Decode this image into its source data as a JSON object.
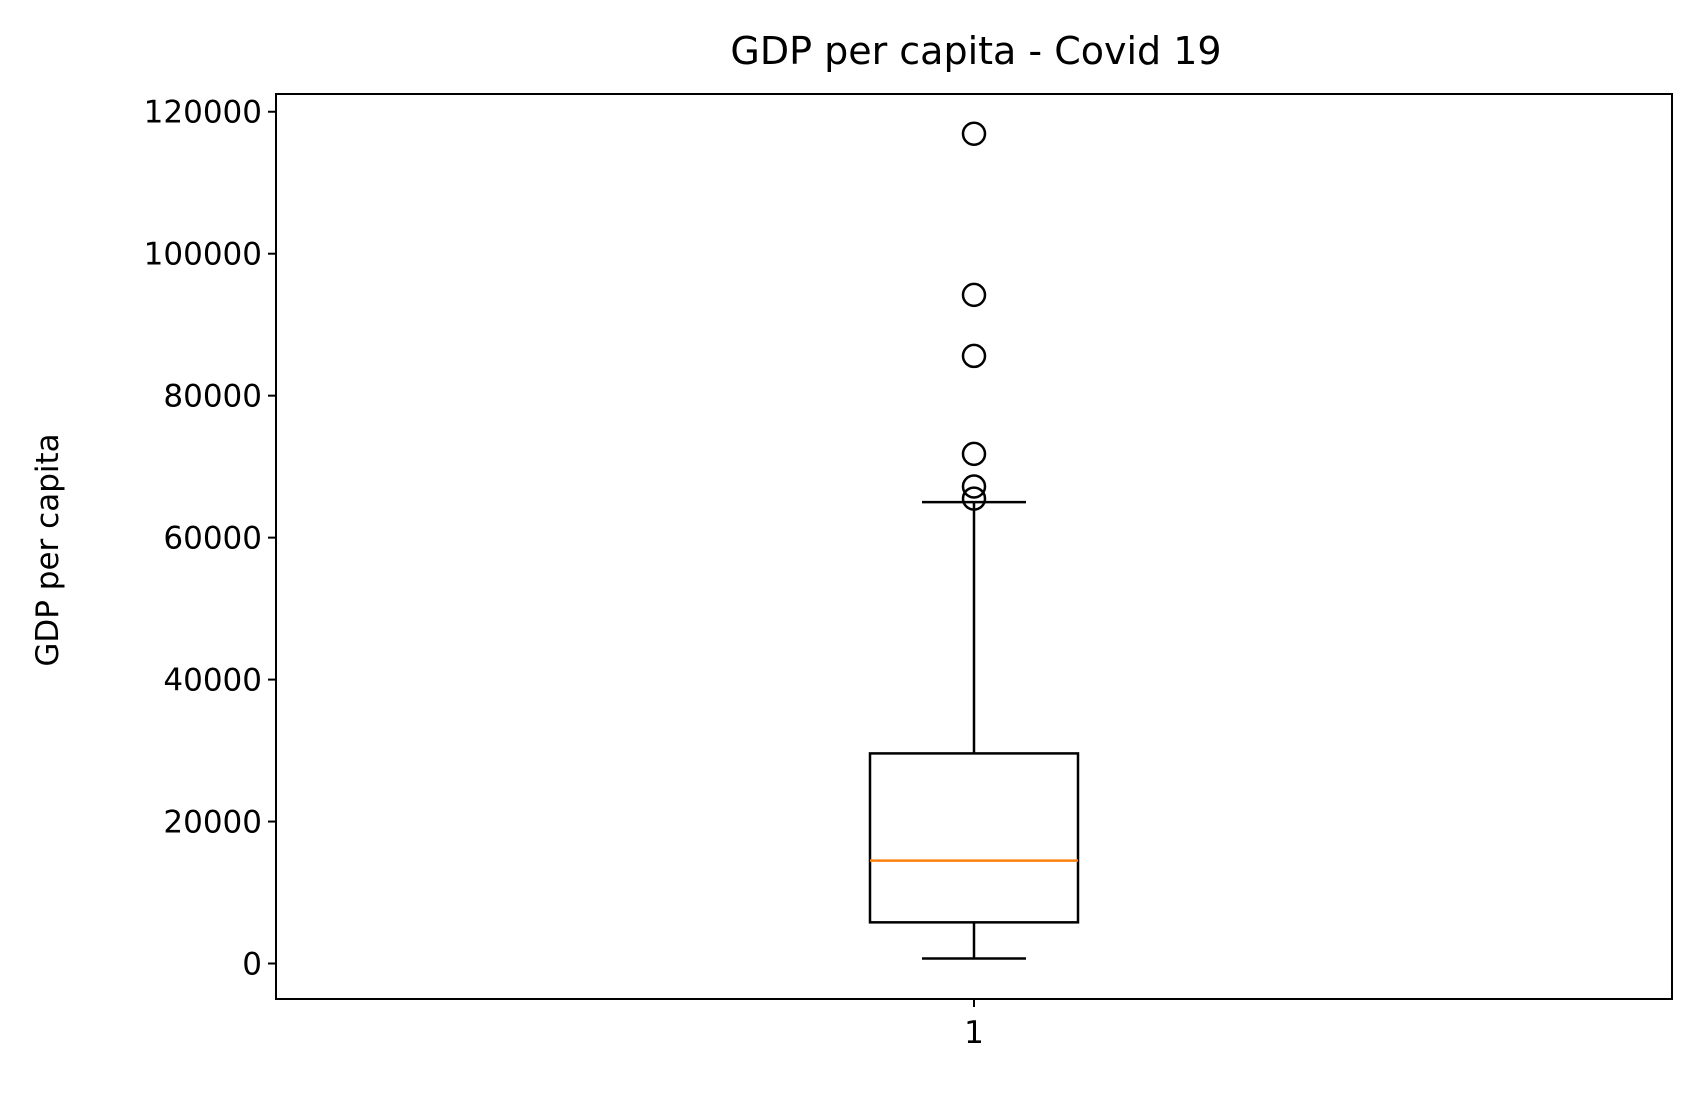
{
  "chart_data": {
    "type": "box",
    "title": "GDP per capita - Covid 19",
    "xlabel": "",
    "ylabel": "GDP per capita",
    "ylim": [
      -5000,
      122500
    ],
    "y_ticks": [
      0,
      20000,
      40000,
      60000,
      80000,
      100000,
      120000
    ],
    "y_tick_labels": [
      "0",
      "20000",
      "40000",
      "60000",
      "80000",
      "100000",
      "120000"
    ],
    "x_ticks": [
      1
    ],
    "x_tick_labels": [
      "1"
    ],
    "grid": false,
    "boxes": [
      {
        "position": 1,
        "whisker_low": 700,
        "q1": 5800,
        "median": 14500,
        "q3": 29600,
        "whisker_high": 65000,
        "outliers": [
          65500,
          67200,
          71800,
          85600,
          94200,
          116900
        ]
      }
    ],
    "colors": {
      "box": "#000000",
      "median": "#ff7f0e",
      "outlier": "#000000"
    }
  }
}
